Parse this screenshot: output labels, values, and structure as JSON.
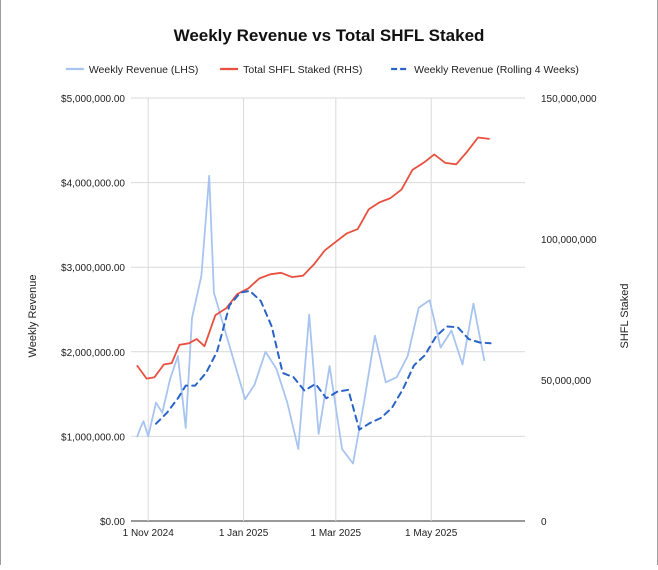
{
  "chart_data": {
    "type": "line",
    "title": "Weekly Revenue vs Total SHFL Staked",
    "ylabel": "Weekly Revenue",
    "y2label": "SHFL Staked",
    "xlim": [
      "2024-10-21",
      "2025-06-30"
    ],
    "ylim": [
      0,
      5000000
    ],
    "y2lim": [
      0,
      150000000
    ],
    "x_ticks": [
      {
        "date": "2024-11-01",
        "label": "1 Nov 2024"
      },
      {
        "date": "2025-01-01",
        "label": "1 Jan 2025"
      },
      {
        "date": "2025-03-01",
        "label": "1 Mar 2025"
      },
      {
        "date": "2025-05-01",
        "label": "1 May 2025"
      }
    ],
    "y_ticks": [
      "$0.00",
      "$1,000,000.00",
      "$2,000,000.00",
      "$3,000,000.00",
      "$4,000,000.00",
      "$5,000,000.00"
    ],
    "y2_ticks": [
      "0",
      "50,000,000",
      "100,000,000",
      "150,000,000"
    ],
    "grid": true,
    "legend_position": "top",
    "series": [
      {
        "name": "Weekly Revenue (LHS)",
        "axis": "left",
        "color": "#a8c4f0",
        "style": "solid",
        "points": [
          [
            "2024-10-25",
            1000000
          ],
          [
            "2024-10-27",
            1100000
          ],
          [
            "2024-10-29",
            1180000
          ],
          [
            "2024-11-01",
            1000000
          ],
          [
            "2024-11-06",
            1400000
          ],
          [
            "2024-11-10",
            1280000
          ],
          [
            "2024-11-15",
            1680000
          ],
          [
            "2024-11-20",
            1950000
          ],
          [
            "2024-11-25",
            1100000
          ],
          [
            "2024-11-29",
            2400000
          ],
          [
            "2024-12-05",
            2900000
          ],
          [
            "2024-12-10",
            4080000
          ],
          [
            "2024-12-13",
            2700000
          ],
          [
            "2025-01-02",
            1440000
          ],
          [
            "2025-01-08",
            1610000
          ],
          [
            "2025-01-15",
            2000000
          ],
          [
            "2025-01-22",
            1800000
          ],
          [
            "2025-01-29",
            1400000
          ],
          [
            "2025-02-05",
            850000
          ],
          [
            "2025-02-12",
            2440000
          ],
          [
            "2025-02-18",
            1030000
          ],
          [
            "2025-02-25",
            1830000
          ],
          [
            "2025-03-05",
            850000
          ],
          [
            "2025-03-12",
            680000
          ],
          [
            "2025-03-19",
            1400000
          ],
          [
            "2025-03-26",
            2190000
          ],
          [
            "2025-04-02",
            1640000
          ],
          [
            "2025-04-09",
            1700000
          ],
          [
            "2025-04-16",
            1950000
          ],
          [
            "2025-04-23",
            2520000
          ],
          [
            "2025-04-30",
            2610000
          ],
          [
            "2025-05-07",
            2050000
          ],
          [
            "2025-05-14",
            2250000
          ],
          [
            "2025-05-21",
            1850000
          ],
          [
            "2025-05-28",
            2570000
          ],
          [
            "2025-06-04",
            1900000
          ]
        ]
      },
      {
        "name": "Total SHFL Staked (RHS)",
        "axis": "right",
        "color": "#e8503f",
        "style": "solid",
        "points": [
          [
            "2024-10-25",
            55000000
          ],
          [
            "2024-10-31",
            50500000
          ],
          [
            "2024-11-05",
            51000000
          ],
          [
            "2024-11-11",
            55500000
          ],
          [
            "2024-11-16",
            56000000
          ],
          [
            "2024-11-21",
            62500000
          ],
          [
            "2024-11-27",
            63000000
          ],
          [
            "2024-12-02",
            64500000
          ],
          [
            "2024-12-07",
            62000000
          ],
          [
            "2024-12-14",
            73000000
          ],
          [
            "2024-12-21",
            75500000
          ],
          [
            "2024-12-28",
            80500000
          ],
          [
            "2025-01-04",
            82500000
          ],
          [
            "2025-01-11",
            86000000
          ],
          [
            "2025-01-18",
            87500000
          ],
          [
            "2025-01-25",
            88000000
          ],
          [
            "2025-02-01",
            86500000
          ],
          [
            "2025-02-08",
            87000000
          ],
          [
            "2025-02-15",
            91000000
          ],
          [
            "2025-02-22",
            96000000
          ],
          [
            "2025-03-01",
            99000000
          ],
          [
            "2025-03-08",
            102000000
          ],
          [
            "2025-03-15",
            103500000
          ],
          [
            "2025-03-22",
            110500000
          ],
          [
            "2025-03-29",
            113000000
          ],
          [
            "2025-04-05",
            114500000
          ],
          [
            "2025-04-12",
            117500000
          ],
          [
            "2025-04-19",
            124500000
          ],
          [
            "2025-04-26",
            127000000
          ],
          [
            "2025-05-03",
            130000000
          ],
          [
            "2025-05-10",
            127000000
          ],
          [
            "2025-05-17",
            126500000
          ],
          [
            "2025-05-24",
            131000000
          ],
          [
            "2025-05-31",
            136000000
          ],
          [
            "2025-06-07",
            135500000
          ]
        ]
      },
      {
        "name": "Weekly Revenue (Rolling 4 Weeks)",
        "axis": "left",
        "color": "#2a63c8",
        "style": "dashed",
        "points": [
          [
            "2024-11-06",
            1150000
          ],
          [
            "2024-11-13",
            1280000
          ],
          [
            "2024-11-20",
            1450000
          ],
          [
            "2024-11-25",
            1600000
          ],
          [
            "2024-12-01",
            1600000
          ],
          [
            "2024-12-08",
            1750000
          ],
          [
            "2024-12-15",
            2000000
          ],
          [
            "2024-12-23",
            2550000
          ],
          [
            "2024-12-30",
            2700000
          ],
          [
            "2025-01-05",
            2720000
          ],
          [
            "2025-01-12",
            2600000
          ],
          [
            "2025-01-19",
            2300000
          ],
          [
            "2025-01-26",
            1750000
          ],
          [
            "2025-02-02",
            1700000
          ],
          [
            "2025-02-09",
            1540000
          ],
          [
            "2025-02-16",
            1620000
          ],
          [
            "2025-02-23",
            1450000
          ],
          [
            "2025-03-02",
            1530000
          ],
          [
            "2025-03-09",
            1550000
          ],
          [
            "2025-03-16",
            1080000
          ],
          [
            "2025-03-23",
            1160000
          ],
          [
            "2025-03-30",
            1220000
          ],
          [
            "2025-04-06",
            1340000
          ],
          [
            "2025-04-13",
            1560000
          ],
          [
            "2025-04-20",
            1840000
          ],
          [
            "2025-04-27",
            1960000
          ],
          [
            "2025-05-04",
            2180000
          ],
          [
            "2025-05-11",
            2300000
          ],
          [
            "2025-05-18",
            2290000
          ],
          [
            "2025-05-25",
            2150000
          ],
          [
            "2025-06-01",
            2110000
          ],
          [
            "2025-06-08",
            2100000
          ]
        ]
      }
    ]
  }
}
